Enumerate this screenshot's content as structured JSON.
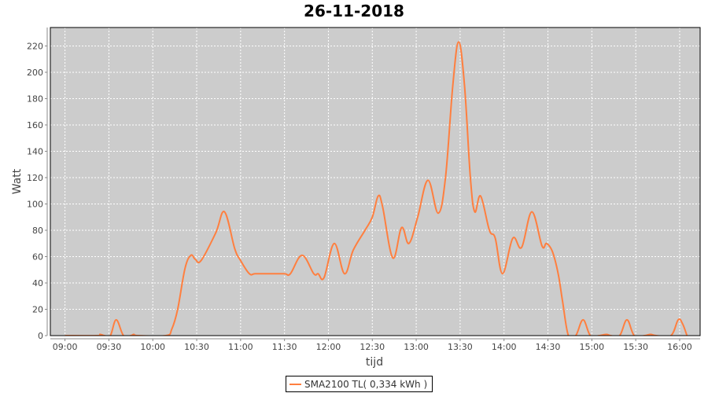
{
  "chart_data": {
    "type": "line",
    "title": "26-11-2018",
    "xlabel": "tijd",
    "ylabel": "Watt",
    "xlim": [
      "08:50",
      "16:14"
    ],
    "ylim": [
      0,
      234
    ],
    "grid": true,
    "legend_position": "bottom",
    "x_ticks": [
      "09:00",
      "09:30",
      "10:00",
      "10:30",
      "11:00",
      "11:30",
      "12:00",
      "12:30",
      "13:00",
      "13:30",
      "14:00",
      "14:30",
      "15:00",
      "15:30",
      "16:00"
    ],
    "y_ticks": [
      0,
      20,
      40,
      60,
      80,
      100,
      120,
      140,
      160,
      180,
      200,
      220
    ],
    "series": [
      {
        "name": "SMA2100 TL( 0,334 kWh )",
        "color": "#ff7f3f",
        "x": [
          "09:00",
          "09:22",
          "09:24",
          "09:27",
          "09:31",
          "09:35",
          "09:40",
          "09:45",
          "09:47",
          "09:50",
          "10:09",
          "10:13",
          "10:17",
          "10:22",
          "10:26",
          "10:29",
          "10:33",
          "10:43",
          "10:49",
          "10:56",
          "11:00",
          "11:06",
          "11:10",
          "11:20",
          "11:30",
          "11:34",
          "11:42",
          "11:50",
          "11:53",
          "11:57",
          "12:04",
          "12:11",
          "12:17",
          "12:25",
          "12:30",
          "12:34",
          "12:37",
          "12:44",
          "12:50",
          "12:55",
          "13:01",
          "13:08",
          "13:15",
          "13:20",
          "13:25",
          "13:29",
          "13:33",
          "13:37",
          "13:40",
          "13:44",
          "13:50",
          "13:54",
          "13:59",
          "14:06",
          "14:12",
          "14:19",
          "14:26",
          "14:29",
          "14:33",
          "14:37",
          "14:40",
          "14:44",
          "14:49",
          "14:54",
          "14:59",
          "15:05",
          "15:10",
          "15:13",
          "15:19",
          "15:24",
          "15:29",
          "15:36",
          "15:40",
          "15:44",
          "15:54",
          "15:59",
          "16:02",
          "16:05"
        ],
        "y": [
          0,
          0,
          1,
          0,
          0,
          12,
          0,
          0,
          1,
          0,
          0,
          5,
          20,
          51,
          61,
          58,
          57,
          78,
          94,
          66,
          57,
          47,
          47,
          47,
          47,
          47,
          61,
          47,
          47,
          44,
          70,
          47,
          65,
          80,
          90,
          106,
          98,
          59,
          82,
          70,
          90,
          118,
          93,
          120,
          190,
          223,
          190,
          120,
          94,
          106,
          80,
          74,
          47,
          74,
          67,
          94,
          68,
          70,
          64,
          47,
          26,
          0,
          0,
          12,
          0,
          0,
          1,
          0,
          0,
          12,
          0,
          0,
          1,
          0,
          0,
          12,
          9,
          0
        ]
      }
    ]
  },
  "colors": {
    "plot_background": "#cccccc",
    "gridline": "#ffffff",
    "series": "#ff7f3f"
  }
}
